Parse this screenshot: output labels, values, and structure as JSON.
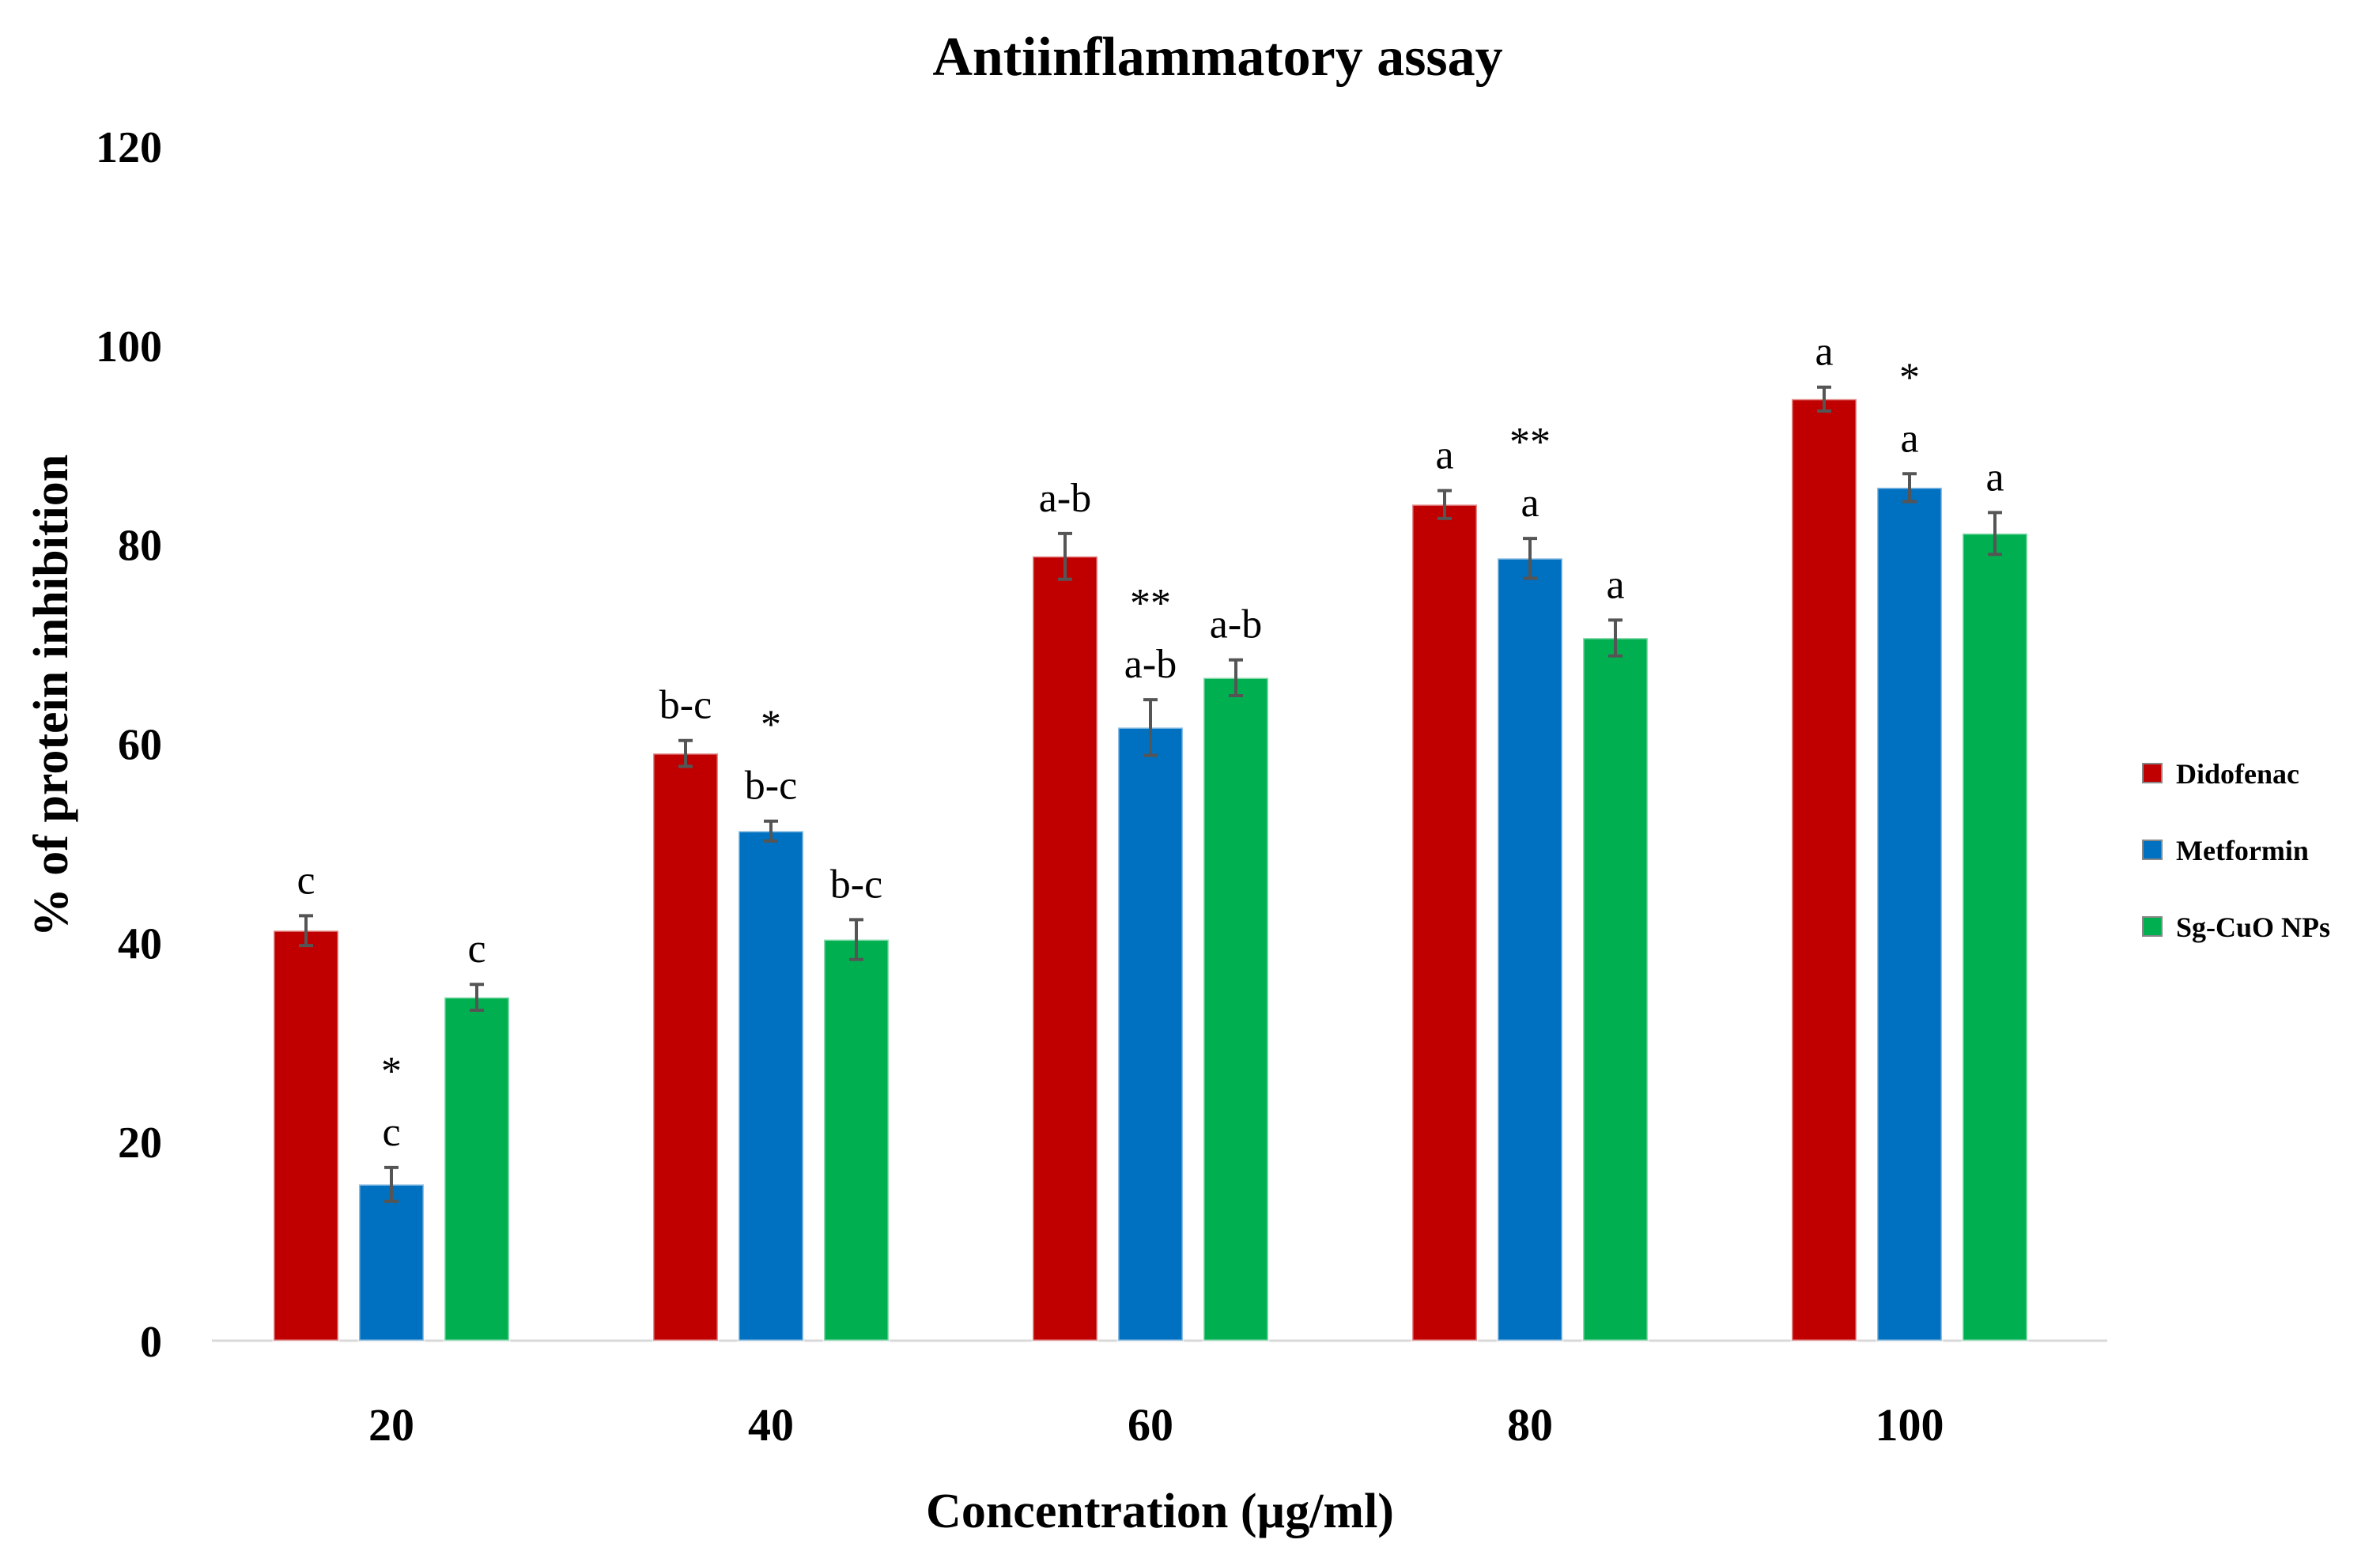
{
  "chart_data": {
    "type": "bar",
    "title": "Antiinflammatory assay",
    "xlabel": "Concentration (µg/ml)",
    "ylabel": "% of protein inhibition",
    "ylim": [
      0,
      120
    ],
    "yticks": [
      0,
      20,
      40,
      60,
      80,
      100,
      120
    ],
    "grid": false,
    "legend_position": "right",
    "categories": [
      "20",
      "40",
      "60",
      "80",
      "100"
    ],
    "series": [
      {
        "name": "Didofenac",
        "color": "#c00000",
        "values": [
          41.2,
          59.0,
          78.8,
          84.0,
          94.6
        ],
        "errors": [
          1.5,
          1.3,
          2.3,
          1.4,
          1.2
        ],
        "labels": [
          "c",
          "b-c",
          "a-b",
          "a",
          "a"
        ]
      },
      {
        "name": "Metformin",
        "color": "#0070c0",
        "values": [
          15.7,
          51.2,
          61.6,
          78.6,
          85.7
        ],
        "errors": [
          1.7,
          1.0,
          2.8,
          2.0,
          1.4
        ],
        "labels": [
          "c",
          "b-c",
          "a-b",
          "a",
          "a"
        ],
        "markers": [
          "*",
          "*",
          "**",
          "**",
          "*"
        ]
      },
      {
        "name": "Sg-CuO NPs",
        "color": "#00b050",
        "values": [
          34.5,
          40.3,
          66.6,
          70.6,
          81.1
        ],
        "errors": [
          1.3,
          2.0,
          1.8,
          1.8,
          2.1
        ],
        "labels": [
          "c",
          "b-c",
          "a-b",
          "a",
          "a"
        ]
      }
    ]
  }
}
